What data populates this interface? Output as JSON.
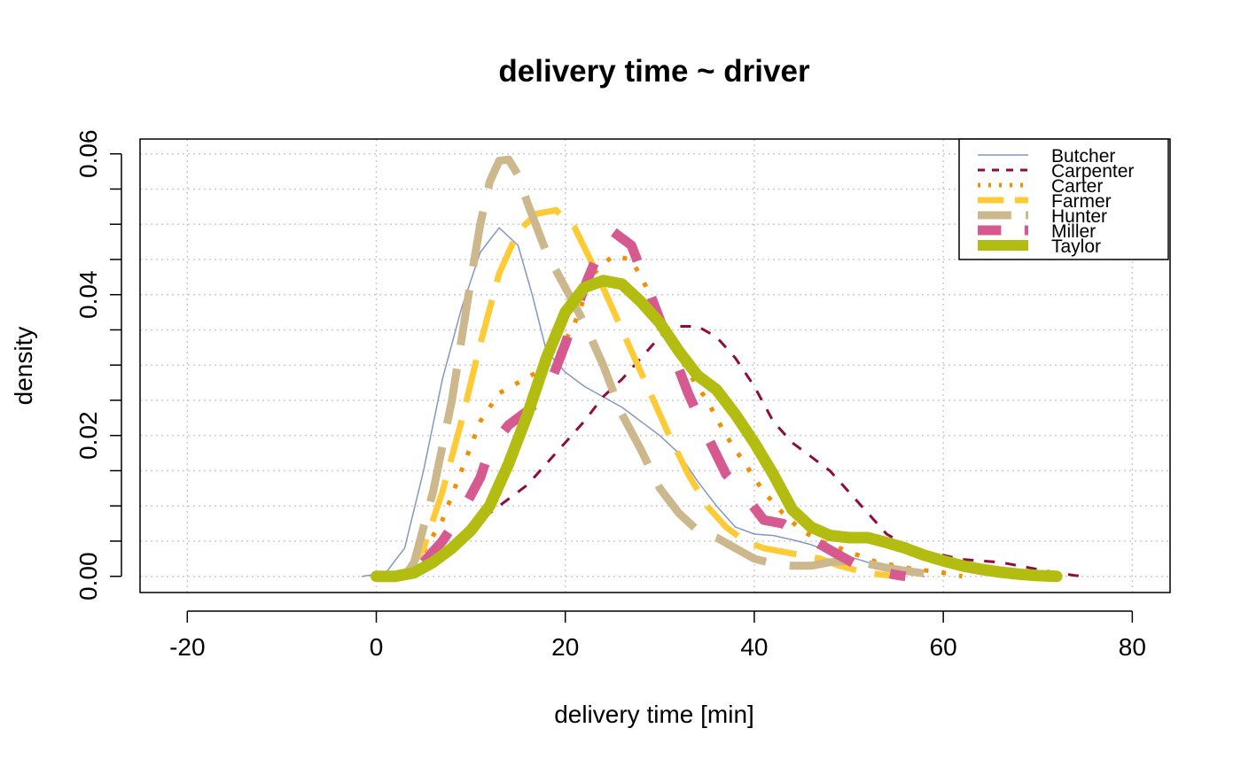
{
  "chart_data": {
    "type": "line",
    "title": "delivery time ~ driver",
    "xlabel": "delivery time [min]",
    "ylabel": "density",
    "xlim": [
      -25,
      84
    ],
    "ylim": [
      -0.0023,
      0.0621
    ],
    "x_ticks": [
      "-20",
      "0",
      "20",
      "40",
      "60",
      "80"
    ],
    "y_ticks": [
      "0.00",
      "0.02",
      "0.04",
      "0.06"
    ],
    "grid": true,
    "legend_position": "top-right",
    "series": [
      {
        "name": "Butcher",
        "color": "#8197C6",
        "line_style": "solid",
        "line_width": 1.5,
        "points": [
          [
            -1.5,
            0
          ],
          [
            1,
            0.0005
          ],
          [
            3,
            0.004
          ],
          [
            5,
            0.015
          ],
          [
            7,
            0.028
          ],
          [
            9,
            0.038
          ],
          [
            11,
            0.046
          ],
          [
            13,
            0.0495
          ],
          [
            15,
            0.047
          ],
          [
            16.5,
            0.04
          ],
          [
            18,
            0.032
          ],
          [
            20,
            0.029
          ],
          [
            22,
            0.027
          ],
          [
            24,
            0.0255
          ],
          [
            26,
            0.024
          ],
          [
            28,
            0.022
          ],
          [
            30,
            0.02
          ],
          [
            32,
            0.0175
          ],
          [
            34,
            0.0135
          ],
          [
            36,
            0.01
          ],
          [
            38,
            0.007
          ],
          [
            40,
            0.006
          ],
          [
            42,
            0.0058
          ],
          [
            44,
            0.0052
          ],
          [
            46,
            0.0045
          ],
          [
            48,
            0.0035
          ],
          [
            50,
            0.0028
          ],
          [
            52,
            0.002
          ],
          [
            54,
            0.001
          ],
          [
            56,
            0.0003
          ],
          [
            58,
            0
          ]
        ]
      },
      {
        "name": "Carpenter",
        "color": "#8E0C3E",
        "line_style": "dashed",
        "line_width": 3,
        "points": [
          [
            8,
            0.0045
          ],
          [
            10,
            0.006
          ],
          [
            12,
            0.009
          ],
          [
            14,
            0.011
          ],
          [
            16,
            0.013
          ],
          [
            18,
            0.016
          ],
          [
            20,
            0.019
          ],
          [
            22,
            0.022
          ],
          [
            24,
            0.0255
          ],
          [
            26,
            0.028
          ],
          [
            28,
            0.031
          ],
          [
            30,
            0.034
          ],
          [
            32,
            0.0355
          ],
          [
            34,
            0.0355
          ],
          [
            36,
            0.034
          ],
          [
            38,
            0.031
          ],
          [
            40,
            0.027
          ],
          [
            42,
            0.022
          ],
          [
            44,
            0.019
          ],
          [
            46,
            0.017
          ],
          [
            48,
            0.015
          ],
          [
            50,
            0.012
          ],
          [
            52,
            0.009
          ],
          [
            54,
            0.006
          ],
          [
            56,
            0.0045
          ],
          [
            58,
            0.0035
          ],
          [
            60,
            0.003
          ],
          [
            62,
            0.0024
          ],
          [
            64,
            0.0022
          ],
          [
            66,
            0.002
          ],
          [
            68,
            0.0015
          ],
          [
            70,
            0.001
          ],
          [
            72,
            0.0005
          ],
          [
            74,
            0.0001
          ],
          [
            75,
            0
          ]
        ]
      },
      {
        "name": "Carter",
        "color": "#F28E00",
        "line_style": "dotted",
        "line_width": 5,
        "points": [
          [
            5,
            0.0035
          ],
          [
            7,
            0.008
          ],
          [
            9,
            0.015
          ],
          [
            11,
            0.022
          ],
          [
            13,
            0.026
          ],
          [
            15,
            0.0275
          ],
          [
            17,
            0.029
          ],
          [
            19,
            0.031
          ],
          [
            21,
            0.036
          ],
          [
            23,
            0.043
          ],
          [
            25,
            0.0455
          ],
          [
            27,
            0.045
          ],
          [
            29,
            0.04
          ],
          [
            31,
            0.034
          ],
          [
            33,
            0.029
          ],
          [
            35,
            0.025
          ],
          [
            37,
            0.02
          ],
          [
            39,
            0.016
          ],
          [
            41,
            0.012
          ],
          [
            43,
            0.009
          ],
          [
            45,
            0.0065
          ],
          [
            47,
            0.005
          ],
          [
            49,
            0.004
          ],
          [
            51,
            0.003
          ],
          [
            53,
            0.002
          ],
          [
            55,
            0.0015
          ],
          [
            57,
            0.001
          ],
          [
            59,
            0.0007
          ],
          [
            61,
            0.0003
          ],
          [
            62,
            0
          ]
        ]
      },
      {
        "name": "Farmer",
        "color": "#FECB37",
        "line_style": "longdash",
        "line_width": 7,
        "points": [
          [
            3,
            0
          ],
          [
            5,
            0.004
          ],
          [
            7,
            0.012
          ],
          [
            9,
            0.022
          ],
          [
            11,
            0.033
          ],
          [
            13,
            0.043
          ],
          [
            15,
            0.049
          ],
          [
            17,
            0.0515
          ],
          [
            19,
            0.052
          ],
          [
            21,
            0.0495
          ],
          [
            23,
            0.044
          ],
          [
            25,
            0.038
          ],
          [
            27,
            0.032
          ],
          [
            29,
            0.026
          ],
          [
            31,
            0.02
          ],
          [
            33,
            0.0145
          ],
          [
            35,
            0.01
          ],
          [
            37,
            0.007
          ],
          [
            39,
            0.005
          ],
          [
            41,
            0.004
          ],
          [
            43,
            0.0035
          ],
          [
            45,
            0.003
          ],
          [
            47,
            0.0025
          ],
          [
            49,
            0.0015
          ],
          [
            51,
            0.0008
          ],
          [
            53,
            0.0003
          ],
          [
            55,
            0
          ]
        ]
      },
      {
        "name": "Hunter",
        "color": "#CCB88C",
        "line_style": "longdash",
        "line_width": 9,
        "points": [
          [
            3,
            0
          ],
          [
            4,
            0.002
          ],
          [
            6,
            0.012
          ],
          [
            8,
            0.025
          ],
          [
            10,
            0.042
          ],
          [
            11,
            0.05
          ],
          [
            12,
            0.056
          ],
          [
            13,
            0.059
          ],
          [
            14,
            0.0592
          ],
          [
            15,
            0.057
          ],
          [
            16,
            0.053
          ],
          [
            18,
            0.046
          ],
          [
            20,
            0.041
          ],
          [
            22,
            0.036
          ],
          [
            24,
            0.03
          ],
          [
            26,
            0.023
          ],
          [
            28,
            0.018
          ],
          [
            30,
            0.0125
          ],
          [
            32,
            0.009
          ],
          [
            34,
            0.0065
          ],
          [
            36,
            0.0055
          ],
          [
            38,
            0.004
          ],
          [
            40,
            0.0025
          ],
          [
            42,
            0.0018
          ],
          [
            44,
            0.0015
          ],
          [
            46,
            0.0015
          ],
          [
            48,
            0.002
          ],
          [
            50,
            0.0022
          ],
          [
            52,
            0.0018
          ],
          [
            54,
            0.0012
          ],
          [
            56,
            0.0008
          ],
          [
            58,
            0.0004
          ],
          [
            60,
            0
          ]
        ]
      },
      {
        "name": "Miller",
        "color": "#D65A90",
        "line_style": "dashed",
        "line_width": 11,
        "points": [
          [
            5,
            0.002
          ],
          [
            7,
            0.005
          ],
          [
            9,
            0.009
          ],
          [
            11,
            0.014
          ],
          [
            12,
            0.018
          ],
          [
            14,
            0.0215
          ],
          [
            16,
            0.0235
          ],
          [
            18,
            0.026
          ],
          [
            20,
            0.033
          ],
          [
            22,
            0.041
          ],
          [
            24,
            0.0475
          ],
          [
            25,
            0.049
          ],
          [
            27,
            0.047
          ],
          [
            29,
            0.04
          ],
          [
            31,
            0.033
          ],
          [
            33,
            0.026
          ],
          [
            35,
            0.02
          ],
          [
            37,
            0.0145
          ],
          [
            39,
            0.0115
          ],
          [
            41,
            0.008
          ],
          [
            43,
            0.0075
          ],
          [
            45,
            0.006
          ],
          [
            47,
            0.0045
          ],
          [
            49,
            0.003
          ],
          [
            51,
            0.0015
          ],
          [
            53,
            0.0008
          ],
          [
            55,
            0.0002
          ],
          [
            56,
            0
          ]
        ]
      },
      {
        "name": "Taylor",
        "color": "#B3BC10",
        "line_style": "solid",
        "line_width": 13,
        "points": [
          [
            0,
            0
          ],
          [
            2,
            0
          ],
          [
            4,
            0.0005
          ],
          [
            6,
            0.002
          ],
          [
            8,
            0.004
          ],
          [
            10,
            0.0065
          ],
          [
            12,
            0.01
          ],
          [
            14,
            0.016
          ],
          [
            16,
            0.023
          ],
          [
            18,
            0.031
          ],
          [
            20,
            0.0375
          ],
          [
            22,
            0.041
          ],
          [
            24,
            0.042
          ],
          [
            26,
            0.0415
          ],
          [
            28,
            0.039
          ],
          [
            30,
            0.036
          ],
          [
            32,
            0.032
          ],
          [
            34,
            0.0285
          ],
          [
            36,
            0.0265
          ],
          [
            38,
            0.023
          ],
          [
            40,
            0.019
          ],
          [
            42,
            0.0145
          ],
          [
            44,
            0.0095
          ],
          [
            46,
            0.007
          ],
          [
            48,
            0.0058
          ],
          [
            50,
            0.0055
          ],
          [
            52,
            0.0055
          ],
          [
            54,
            0.0048
          ],
          [
            56,
            0.004
          ],
          [
            58,
            0.003
          ],
          [
            60,
            0.0022
          ],
          [
            62,
            0.0015
          ],
          [
            64,
            0.001
          ],
          [
            66,
            0.0006
          ],
          [
            68,
            0.0003
          ],
          [
            70,
            0.0001
          ],
          [
            72,
            0
          ]
        ]
      }
    ]
  }
}
